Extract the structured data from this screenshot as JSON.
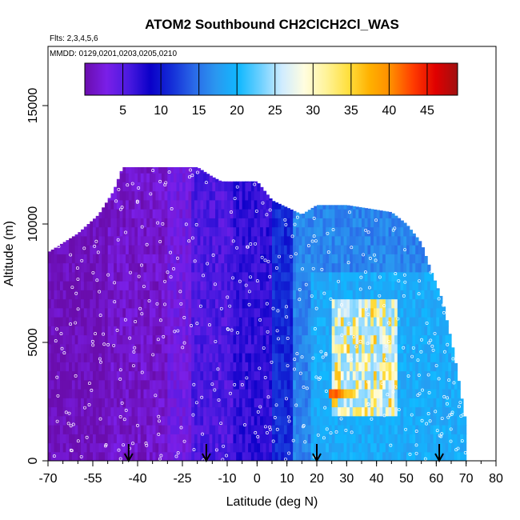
{
  "chart_data": {
    "type": "heatmap",
    "title": "ATOM2 Southbound CH2ClCH2Cl_WAS",
    "subtitle_flights": "Flts: 2,3,4,5,6",
    "subtitle_dates": "MMDD: 0129,0201,0203,0205,0210",
    "xlabel": "Latitude (deg N)",
    "ylabel": "Altitude (m)",
    "xlim": [
      -70,
      80
    ],
    "ylim": [
      0,
      17500
    ],
    "x_ticks": [
      -70,
      -55,
      -40,
      -25,
      -10,
      0,
      10,
      20,
      30,
      40,
      50,
      60,
      70,
      80
    ],
    "y_ticks": [
      0,
      5000,
      10000,
      15000
    ],
    "colorbar": {
      "range": [
        0,
        49
      ],
      "ticks": [
        5,
        10,
        15,
        20,
        25,
        30,
        35,
        40,
        45
      ],
      "colors": [
        "#6a0dad",
        "#7a1fe8",
        "#4a1ae0",
        "#0a00c8",
        "#1530d8",
        "#2a6ae8",
        "#2a98f0",
        "#10b8ff",
        "#6cd0ff",
        "#d0ecff",
        "#fffde0",
        "#fff39a",
        "#ffe040",
        "#ffb000",
        "#ff8a00",
        "#ff3a00",
        "#e00000",
        "#a01010"
      ]
    },
    "max_altitude_profile": {
      "lat": [
        -70,
        -60,
        -53,
        -48,
        -45,
        -40,
        -35,
        -20,
        -15,
        -12,
        0,
        5,
        10,
        15,
        20,
        30,
        40,
        45,
        50,
        55,
        58,
        62,
        66,
        70
      ],
      "alt": [
        8800,
        9600,
        10400,
        11400,
        12400,
        12400,
        12400,
        12400,
        12000,
        11800,
        11800,
        11000,
        10700,
        10400,
        10800,
        10800,
        10600,
        10500,
        10000,
        9200,
        8100,
        6800,
        4500,
        1500
      ]
    },
    "arrows_lat": [
      -43,
      -17,
      20,
      61
    ],
    "field_description": "Low values (~1-3) south of -20N, minimum ~5 near -15 to 10N, increasing to ~15-25 north of 15N with patches ~30-45 at 25-45N between 2000-7000 m."
  }
}
